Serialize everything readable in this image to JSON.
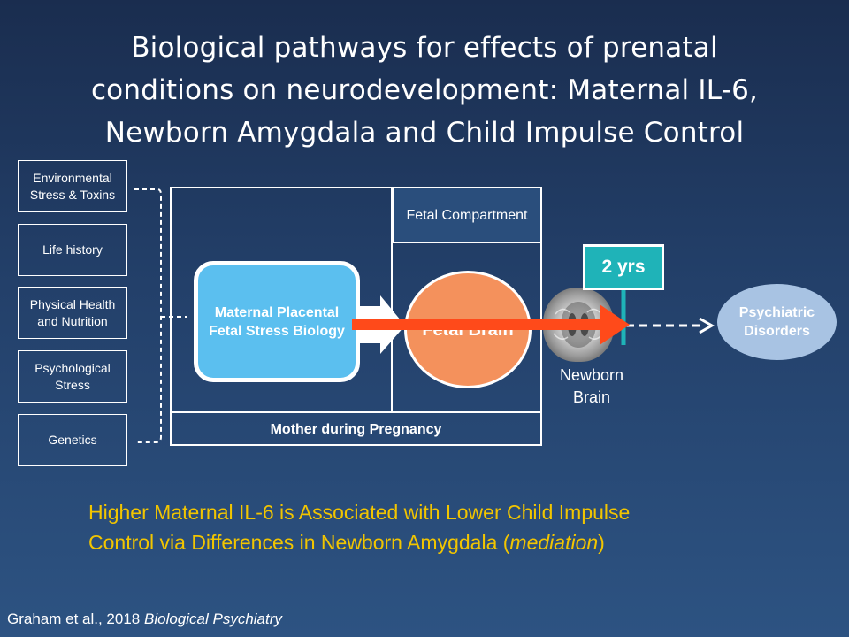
{
  "title": {
    "line1": "Biological pathways for effects of prenatal",
    "line2": "conditions on neurodevelopment: Maternal IL-6,",
    "line3": "Newborn Amygdala and Child Impulse Control"
  },
  "factors": [
    {
      "label": "Environmental Stress & Toxins"
    },
    {
      "label": "Life history"
    },
    {
      "label": "Physical Health and Nutrition"
    },
    {
      "label": "Psychological Stress"
    },
    {
      "label": "Genetics"
    }
  ],
  "diagram": {
    "maternal_box": "Maternal Placental Fetal Stress Biology",
    "fetal_compartment": "Fetal Compartment",
    "fetal_brain": "Fetal Brain",
    "mother_label": "Mother during Pregnancy",
    "newborn_label": "Newborn Brain",
    "yrs_label": "2 yrs",
    "psychiatric": "Psychiatric Disorders"
  },
  "caption": {
    "line1": "Higher Maternal IL-6 is Associated with Lower Child Impulse",
    "line2_prefix": "Control via Differences in Newborn Amygdala (",
    "line2_italic": "mediation",
    "line2_suffix": ")"
  },
  "citation": {
    "authors": "Graham et al., 2018",
    "journal": "Biological Psychiatry"
  },
  "colors": {
    "caption": "#f2c500",
    "maternal_box": "#5bbfef",
    "fetal_brain": "#f4915c",
    "arrow": "#ff4a1a",
    "yrs_box": "#1fb3b8",
    "psychiatric": "#a8c3e3"
  }
}
